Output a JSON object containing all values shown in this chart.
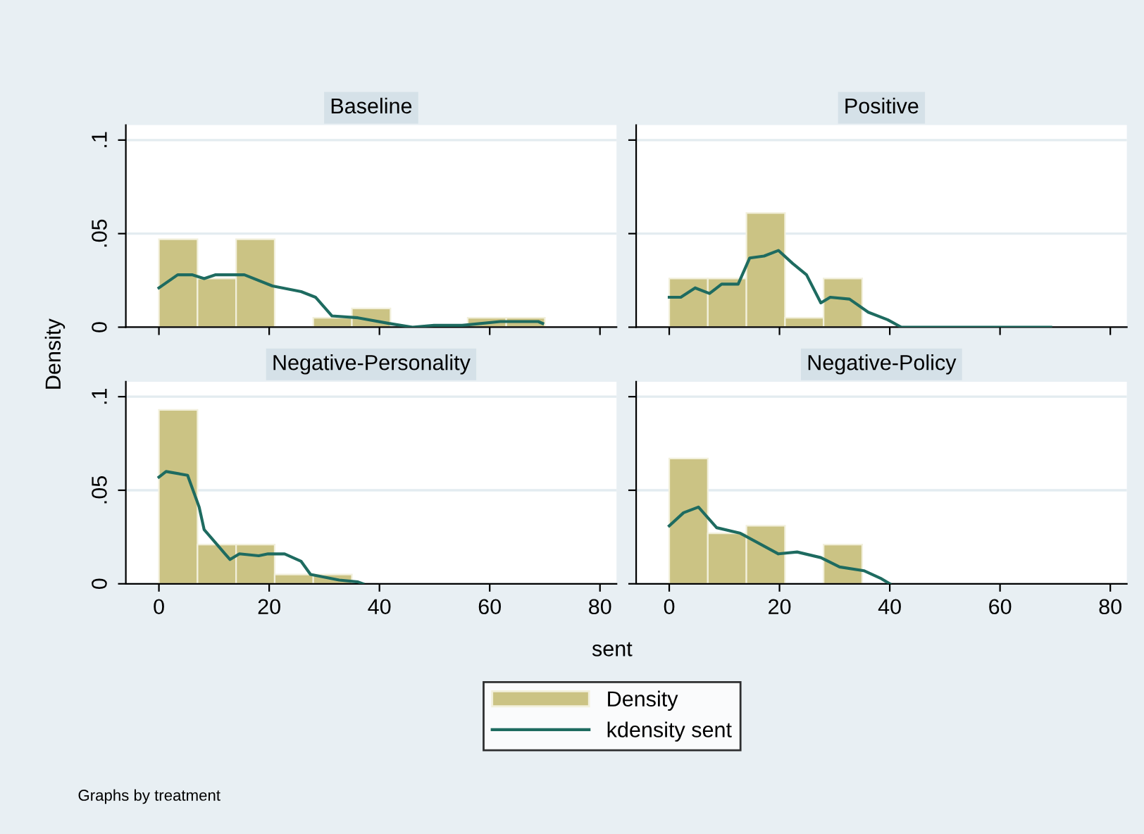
{
  "chart_data": [
    {
      "type": "histogram",
      "title": "Baseline",
      "ylabel": "Density",
      "xlabel": "sent",
      "legend": "bottom",
      "annotations": [
        "Graphs by treatment"
      ],
      "xlim": [
        -6,
        83
      ],
      "ylim": [
        0,
        0.108
      ],
      "xticks": [
        {
          "value": 0,
          "label": null
        },
        {
          "value": 20,
          "label": null
        },
        {
          "value": 40,
          "label": null
        },
        {
          "value": 60,
          "label": null
        },
        {
          "value": 80,
          "label": null
        }
      ],
      "yticks": [
        {
          "value": 0,
          "label": "0"
        },
        {
          "value": 0.05,
          "label": ".05"
        },
        {
          "value": 0.1,
          "label": ".1"
        }
      ],
      "grid": "y",
      "tick_labels": "y",
      "series": [
        {
          "name": "Density",
          "type": "histogram",
          "color": "#cbc384",
          "bins": [
            0,
            7,
            14,
            21,
            28,
            35,
            42,
            49,
            56,
            63,
            70
          ],
          "values": [
            0.047,
            0.026,
            0.047,
            0,
            0.005,
            0.01,
            0,
            0,
            0.005,
            0.005
          ]
        },
        {
          "name": "kdensity sent",
          "type": "line",
          "color": "#1e6b60",
          "x": [
            0,
            3.4,
            6,
            8.2,
            10.3,
            15.5,
            20.6,
            25.8,
            28.4,
            31.4,
            36.1,
            41.7,
            46,
            49.9,
            55,
            61.9,
            68.8,
            69.6
          ],
          "values": [
            0.021,
            0.028,
            0.028,
            0.026,
            0.028,
            0.028,
            0.022,
            0.019,
            0.016,
            0.006,
            0.005,
            0.002,
            0,
            0.001,
            0.001,
            0.003,
            0.003,
            0.002
          ]
        }
      ]
    },
    {
      "type": "histogram",
      "title": "Positive",
      "xlim": [
        -6,
        83
      ],
      "ylim": [
        0,
        0.108
      ],
      "xticks": [
        {
          "value": 0,
          "label": null
        },
        {
          "value": 20,
          "label": null
        },
        {
          "value": 40,
          "label": null
        },
        {
          "value": 60,
          "label": null
        },
        {
          "value": 80,
          "label": null
        }
      ],
      "yticks": [
        {
          "value": 0,
          "label": null
        },
        {
          "value": 0.05,
          "label": null
        },
        {
          "value": 0.1,
          "label": null
        }
      ],
      "grid": "y",
      "tick_labels": false,
      "series": [
        {
          "type": "histogram",
          "color": "#cbc384",
          "bins": [
            0,
            7,
            14,
            21,
            28,
            35
          ],
          "values": [
            0.026,
            0.026,
            0.061,
            0.005,
            0.026
          ]
        },
        {
          "type": "line",
          "color": "#1e6b60",
          "x": [
            0,
            2.1,
            4.7,
            7.3,
            9.5,
            12.5,
            14.6,
            17.2,
            19.8,
            22.4,
            24.9,
            27.5,
            29.2,
            32.7,
            36.1,
            39.6,
            42.1,
            69.2
          ],
          "values": [
            0.016,
            0.016,
            0.021,
            0.018,
            0.023,
            0.023,
            0.037,
            0.038,
            0.041,
            0.034,
            0.028,
            0.013,
            0.016,
            0.015,
            0.008,
            0.004,
            0,
            0
          ]
        }
      ]
    },
    {
      "type": "histogram",
      "title": "Negative-Personality",
      "xlim": [
        -6,
        83
      ],
      "ylim": [
        0,
        0.108
      ],
      "xticks": [
        0,
        20,
        40,
        60,
        80
      ],
      "yticks": [
        {
          "value": 0,
          "label": "0"
        },
        {
          "value": 0.05,
          "label": ".05"
        },
        {
          "value": 0.1,
          "label": ".1"
        }
      ],
      "grid": "y",
      "series": [
        {
          "type": "histogram",
          "color": "#cbc384",
          "bins": [
            0,
            7,
            14,
            21,
            28,
            35
          ],
          "values": [
            0.093,
            0.021,
            0.021,
            0.005,
            0.005
          ]
        },
        {
          "type": "line",
          "color": "#1e6b60",
          "x": [
            0,
            1.3,
            5.2,
            7.3,
            8.2,
            12,
            12.9,
            14.6,
            18.1,
            19.8,
            22.8,
            25.8,
            27.5,
            32.7,
            36.1,
            37
          ],
          "values": [
            0.057,
            0.06,
            0.058,
            0.041,
            0.029,
            0.016,
            0.013,
            0.016,
            0.015,
            0.016,
            0.016,
            0.012,
            0.005,
            0.002,
            0.001,
            0
          ]
        }
      ]
    },
    {
      "type": "histogram",
      "title": "Negative-Policy",
      "xlim": [
        -6,
        83
      ],
      "ylim": [
        0,
        0.108
      ],
      "xticks": [
        0,
        20,
        40,
        60,
        80
      ],
      "yticks": [
        {
          "value": 0,
          "label": null
        },
        {
          "value": 0.05,
          "label": null
        },
        {
          "value": 0.1,
          "label": null
        }
      ],
      "grid": "y",
      "tick_labels": "x",
      "series": [
        {
          "type": "histogram",
          "color": "#cbc384",
          "bins": [
            0,
            7,
            14,
            21,
            28,
            35
          ],
          "values": [
            0.067,
            0.027,
            0.031,
            0,
            0.021
          ]
        },
        {
          "type": "line",
          "color": "#1e6b60",
          "x": [
            0,
            2.6,
            5.3,
            8.6,
            12.9,
            19.8,
            23.2,
            27.5,
            30.9,
            35.3,
            38.3,
            40
          ],
          "values": [
            0.031,
            0.038,
            0.041,
            0.03,
            0.027,
            0.016,
            0.017,
            0.014,
            0.009,
            0.007,
            0.003,
            0
          ]
        }
      ]
    }
  ]
}
